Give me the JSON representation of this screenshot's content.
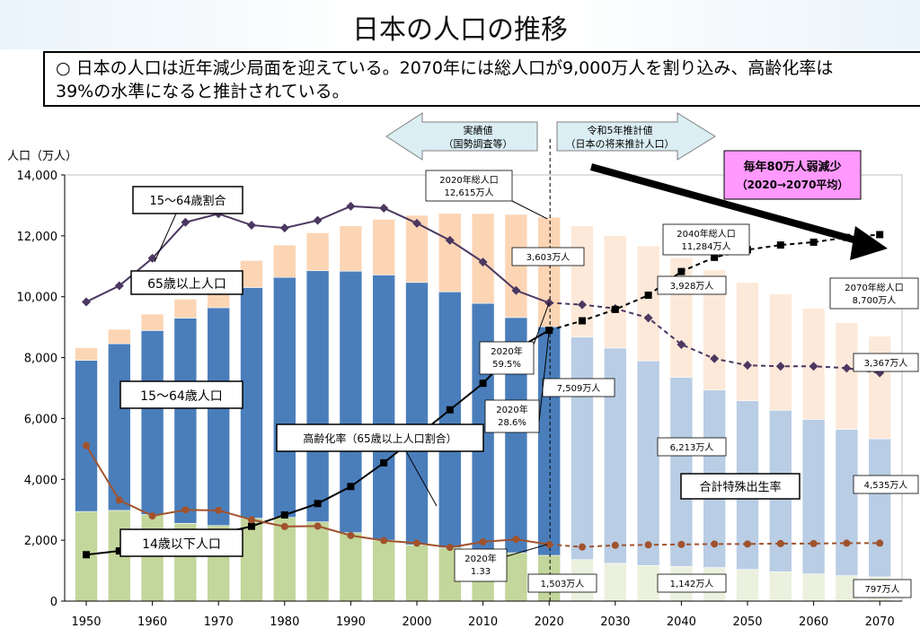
{
  "page": {
    "title": "日本の人口の推移",
    "summary_line1": "○ 日本の人口は近年減少局面を迎えている。2070年には総人口が9,000万人を割り込み、高齢化率は",
    "summary_line2": "39%の水準になると推計されている。"
  },
  "colors": {
    "age0_14": "#c3d69b",
    "age15_64": "#4a7ebb",
    "age65": "#fcd5b5",
    "age0_14_proj": "#ebf1de",
    "age15_64_proj": "#b9cde5",
    "age65_proj": "#fde9d9",
    "working_ratio_line": "#4b3760",
    "aging_rate_line": "#000000",
    "fertility_line": "#a0522d",
    "period_arrow": "#dbeef4",
    "callout_box": "#ff99ff",
    "big_arrow": "#000000"
  },
  "chart_data": {
    "type": "bar",
    "stacked": true,
    "x": [
      1950,
      1955,
      1960,
      1965,
      1970,
      1975,
      1980,
      1985,
      1990,
      1995,
      2000,
      2005,
      2010,
      2015,
      2020,
      2025,
      2030,
      2035,
      2040,
      2045,
      2050,
      2055,
      2060,
      2065,
      2070
    ],
    "projection_start": 2025,
    "x_ticks": [
      "1950",
      "1960",
      "1970",
      "1980",
      "1990",
      "2000",
      "2010",
      "2020",
      "2030",
      "2040",
      "2050",
      "2060",
      "2070"
    ],
    "ylabel": "人口（万人）",
    "ylim": [
      0,
      14000
    ],
    "y_ticks": [
      "0",
      "2,000",
      "4,000",
      "6,000",
      "8,000",
      "10,000",
      "12,000",
      "14,000"
    ],
    "series": [
      {
        "name": "14歳以下人口",
        "values": [
          2943,
          2980,
          2843,
          2553,
          2482,
          2722,
          2751,
          2603,
          2249,
          2001,
          1847,
          1752,
          1680,
          1589,
          1503,
          1363,
          1240,
          1169,
          1142,
          1103,
          1041,
          966,
          893,
          837,
          797
        ]
      },
      {
        "name": "15～64歳人口",
        "values": [
          4966,
          5473,
          6047,
          6744,
          7157,
          7581,
          7883,
          8251,
          8590,
          8716,
          8622,
          8409,
          8103,
          7728,
          7509,
          7310,
          7076,
          6722,
          6213,
          5832,
          5540,
          5304,
          5078,
          4809,
          4535
        ]
      },
      {
        "name": "65歳以上人口",
        "values": [
          416,
          479,
          540,
          624,
          739,
          887,
          1065,
          1247,
          1489,
          1826,
          2204,
          2576,
          2948,
          3387,
          3603,
          3653,
          3696,
          3773,
          3928,
          3945,
          3888,
          3819,
          3644,
          3504,
          3367
        ]
      }
    ],
    "lines": [
      {
        "name": "15～64歳割合",
        "unit": "%",
        "values": [
          59.6,
          61.3,
          64.2,
          68.0,
          68.9,
          67.7,
          67.4,
          68.2,
          69.7,
          69.5,
          67.9,
          66.1,
          63.8,
          60.8,
          59.5,
          59.3,
          58.9,
          57.9,
          55.1,
          53.6,
          52.9,
          52.8,
          52.8,
          52.6,
          52.1
        ]
      },
      {
        "name": "高齢化率（65歳以上人口割合）",
        "unit": "%",
        "values": [
          4.9,
          5.3,
          5.7,
          6.3,
          7.1,
          7.9,
          9.1,
          10.3,
          12.1,
          14.6,
          17.4,
          20.2,
          23.0,
          26.6,
          28.6,
          29.6,
          30.8,
          32.3,
          34.8,
          36.3,
          37.1,
          37.6,
          37.9,
          38.4,
          38.7
        ]
      },
      {
        "name": "合計特殊出生率",
        "values": [
          3.65,
          2.37,
          2.0,
          2.14,
          2.13,
          1.91,
          1.75,
          1.76,
          1.54,
          1.42,
          1.36,
          1.26,
          1.39,
          1.45,
          1.33,
          1.27,
          1.31,
          1.32,
          1.33,
          1.34,
          1.34,
          1.35,
          1.35,
          1.36,
          1.36
        ]
      }
    ],
    "legend_labels": {
      "working_ratio": "15～64歳割合",
      "age65": "65歳以上人口",
      "age15_64": "15～64歳人口",
      "age0_14": "14歳以下人口",
      "aging_rate": "高齢化率（65歳以上人口割合）",
      "fertility": "合計特殊出生率"
    },
    "period_labels": {
      "actual_line1": "実績値",
      "actual_line2": "（国勢調査等）",
      "projected_line1": "令和5年推計値",
      "projected_line2": "（日本の将来推計人口）"
    },
    "callout": {
      "line1": "毎年80万人弱減少",
      "line2": "（2020→2070平均）"
    },
    "annotations": {
      "total_2020_line1": "2020年総人口",
      "total_2020_line2": "12,615万人",
      "total_2040_line1": "2040年総人口",
      "total_2040_line2": "11,284万人",
      "total_2070_line1": "2070年総人口",
      "total_2070_line2": "8,700万人",
      "age65_2020": "3,603万人",
      "age65_2040": "3,928万人",
      "age65_2070": "3,367万人",
      "age15_64_2020": "7,509万人",
      "age15_64_2040": "6,213万人",
      "age15_64_2070": "4,535万人",
      "age0_14_2020": "1,503万人",
      "age0_14_2040": "1,142万人",
      "age0_14_2070": "797万人",
      "ratio_2020_line1": "2020年",
      "ratio_2020_line2": "59.5%",
      "aging_2020_line1": "2020年",
      "aging_2020_line2": "28.6%",
      "tfr_2020_line1": "2020年",
      "tfr_2020_line2": "1.33"
    }
  }
}
